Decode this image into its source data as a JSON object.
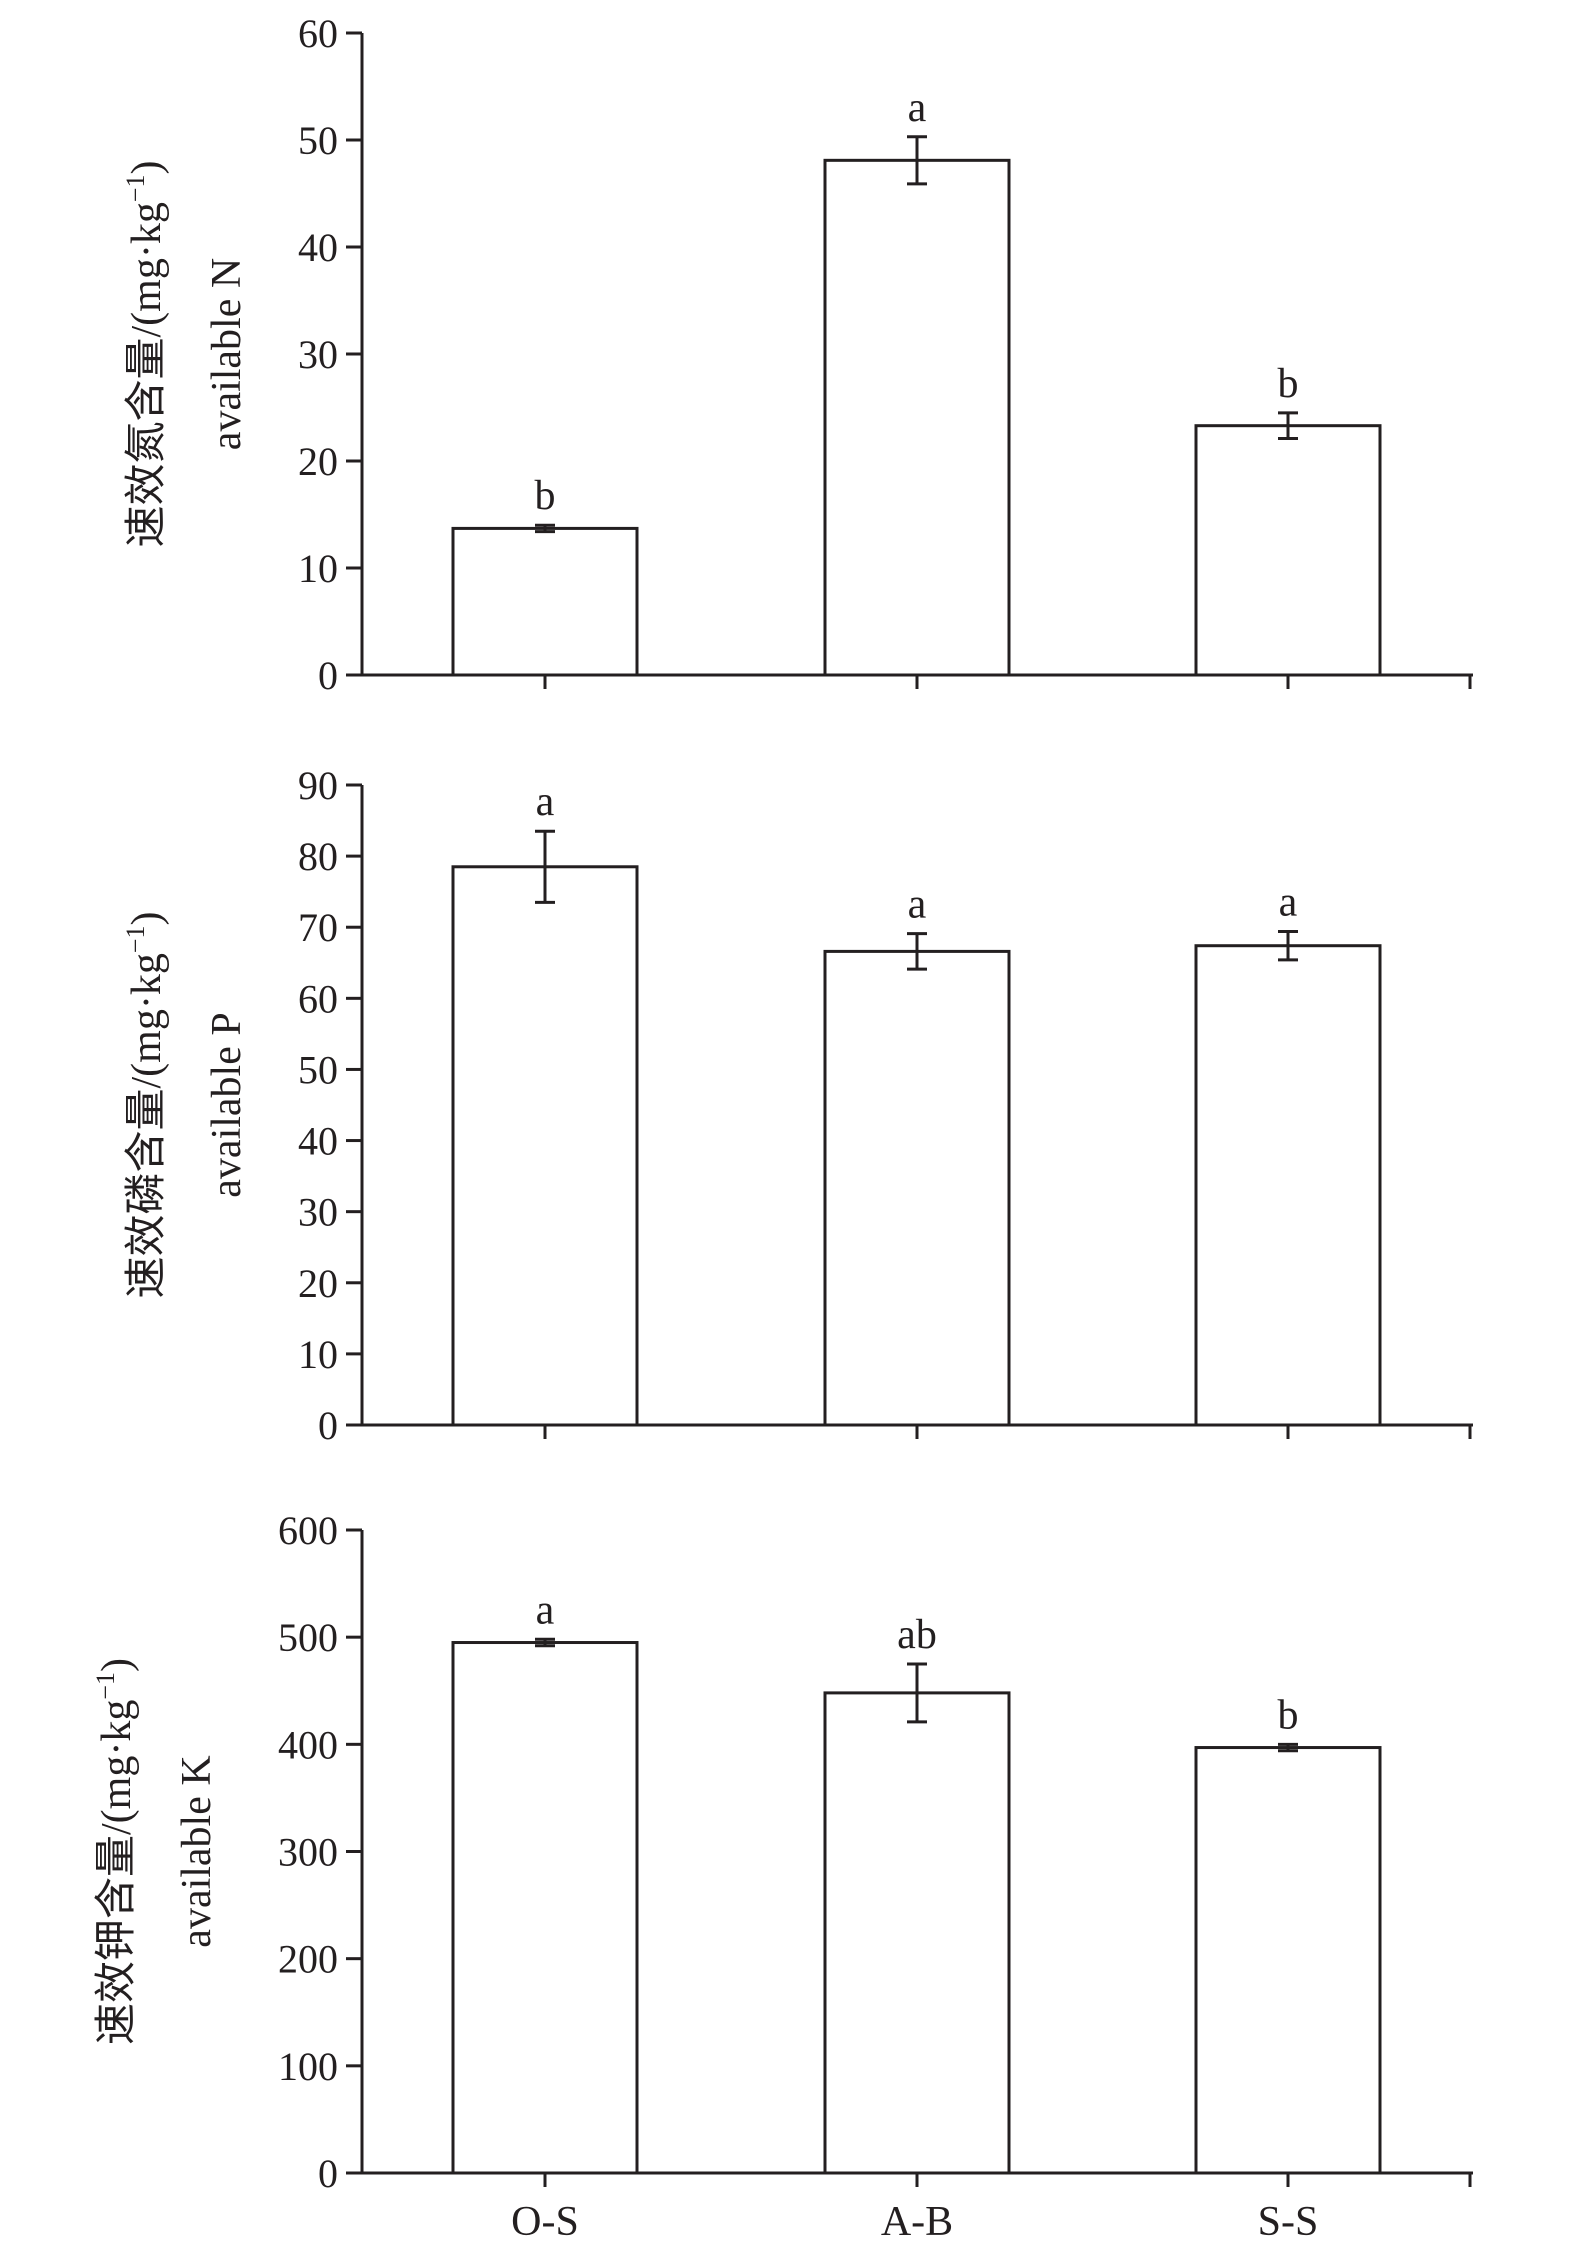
{
  "chart_data": [
    {
      "type": "bar",
      "categories": [
        "O-S",
        "A-B",
        "S-S"
      ],
      "values": [
        13.7,
        48.1,
        23.3
      ],
      "errors": [
        0.3,
        2.2,
        1.2
      ],
      "significance": [
        "b",
        "a",
        "b"
      ],
      "ylabel_cn": "速效氮含量/(mg·kg",
      "ylabel_sup": "−1",
      "ylabel_close": ")",
      "ylabel_en": "available N",
      "ylim": [
        0,
        60
      ],
      "yticks": [
        0,
        10,
        20,
        30,
        40,
        50,
        60
      ],
      "show_category_labels": false
    },
    {
      "type": "bar",
      "categories": [
        "O-S",
        "A-B",
        "S-S"
      ],
      "values": [
        78.5,
        66.6,
        67.4
      ],
      "errors": [
        5.0,
        2.5,
        2.0
      ],
      "significance": [
        "a",
        "a",
        "a"
      ],
      "ylabel_cn": "速效磷含量/(mg·kg",
      "ylabel_sup": "−1",
      "ylabel_close": ")",
      "ylabel_en": "available P",
      "ylim": [
        0,
        90
      ],
      "yticks": [
        0,
        10,
        20,
        30,
        40,
        50,
        60,
        70,
        80,
        90
      ],
      "show_category_labels": false
    },
    {
      "type": "bar",
      "categories": [
        "O-S",
        "A-B",
        "S-S"
      ],
      "values": [
        495,
        448,
        397
      ],
      "errors": [
        3,
        27,
        3
      ],
      "significance": [
        "a",
        "ab",
        "b"
      ],
      "ylabel_cn": "速效钾含量/(mg·kg",
      "ylabel_sup": "−1",
      "ylabel_close": ")",
      "ylabel_en": "available K",
      "ylim": [
        0,
        600
      ],
      "yticks": [
        0,
        100,
        200,
        300,
        400,
        500,
        600
      ],
      "show_category_labels": true
    }
  ],
  "colors": {
    "axis": "#231f20",
    "bar_fill": "#ffffff",
    "bar_stroke": "#231f20"
  }
}
